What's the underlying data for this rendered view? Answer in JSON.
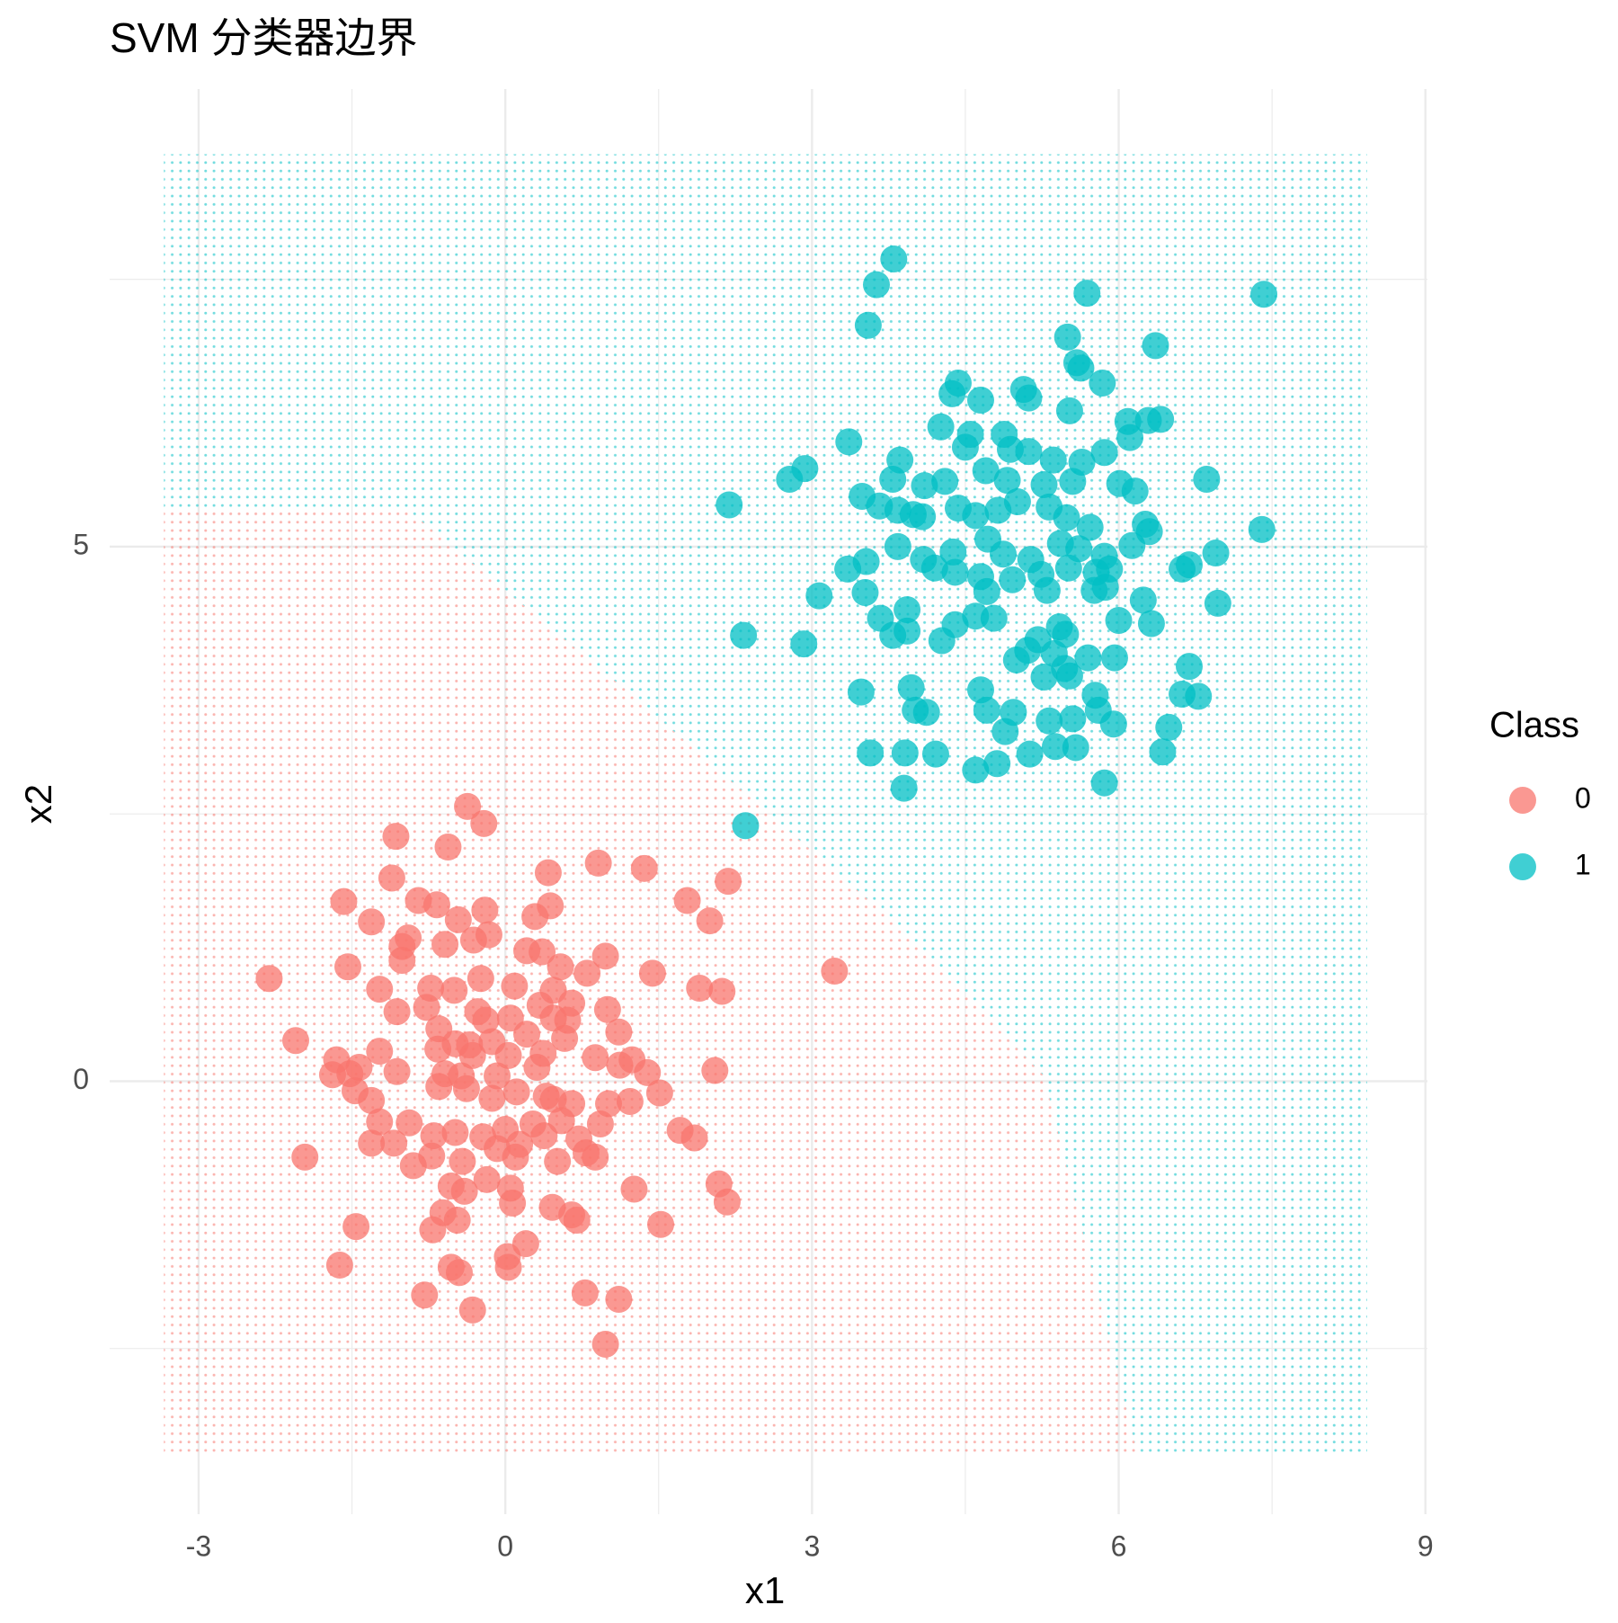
{
  "chart_data": {
    "type": "scatter",
    "title": "SVM 分类器边界",
    "x_label": "x1",
    "y_label": "x2",
    "legend_title": "Class",
    "legend_position": "right",
    "xlim": [
      -3.87,
      9.02
    ],
    "ylim": [
      -4.05,
      9.28
    ],
    "xticks": [
      -3,
      0,
      3,
      6,
      9
    ],
    "yticks": [
      0,
      5
    ],
    "x_minor_grid": [
      -1.5,
      1.5,
      4.5,
      7.5
    ],
    "y_minor_grid": [
      -2.5,
      2.5,
      7.5
    ],
    "grid": true,
    "decision_regions": {
      "xlim": [
        -3.34,
        8.43
      ],
      "ylim": [
        -3.47,
        8.67
      ],
      "boundary_x": [
        -3.34,
        -0.96,
        1.18,
        3.84,
        5.27,
        6.18
      ],
      "boundary_y": [
        5.35,
        5.35,
        3.66,
        1.46,
        0.05,
        -3.47
      ]
    },
    "series": [
      {
        "name": "0",
        "color": "#F8766D",
        "x": [
          -0.37,
          -0.21,
          -1.07,
          -0.56,
          0.42,
          0.91,
          1.36,
          -1.11,
          2.18,
          -1.58,
          -0.85,
          -0.67,
          -0.2,
          0.44,
          1.78,
          -1.31,
          -0.46,
          0.29,
          2.0,
          -0.95,
          -1.01,
          -0.59,
          -0.31,
          -0.16,
          0.36,
          0.98,
          -1.01,
          -1.54,
          0.21,
          0.54,
          0.8,
          1.44,
          3.22,
          -2.31,
          -1.23,
          -0.73,
          -0.5,
          -0.24,
          0.09,
          0.47,
          1.9,
          2.12,
          -1.06,
          -0.77,
          -0.27,
          0.34,
          0.65,
          1.0,
          -0.65,
          -0.19,
          0.05,
          0.47,
          0.61,
          -2.05,
          -0.49,
          -0.35,
          -0.13,
          0.21,
          0.58,
          1.11,
          -1.23,
          -0.66,
          -0.32,
          0.03,
          0.37,
          0.88,
          1.24,
          2.05,
          -1.65,
          -1.52,
          -1.43,
          -1.06,
          -0.59,
          -0.43,
          -0.08,
          0.31,
          1.12,
          1.39,
          -1.69,
          -1.47,
          -0.65,
          -0.38,
          0.11,
          0.47,
          1.51,
          -1.31,
          -0.13,
          0.4,
          0.65,
          1.01,
          1.22,
          -1.23,
          -0.94,
          -0.49,
          -0.22,
          0.0,
          0.27,
          0.55,
          0.93,
          1.71,
          1.85,
          -1.31,
          -1.09,
          -0.7,
          -0.08,
          0.14,
          0.38,
          0.72,
          -1.96,
          -0.72,
          -0.42,
          0.1,
          0.51,
          0.79,
          0.88,
          -0.9,
          -0.18,
          -0.53,
          0.05,
          1.26,
          2.09,
          2.17,
          -0.4,
          0.07,
          0.46,
          -0.61,
          -0.47,
          0.65,
          0.7,
          -1.46,
          -0.71,
          1.52,
          0.2,
          0.02,
          -1.62,
          -0.53,
          0.03,
          -0.45,
          -0.79,
          0.78,
          1.11,
          -0.32,
          0.98
        ],
        "y": [
          2.57,
          2.41,
          2.29,
          2.19,
          1.95,
          2.04,
          1.99,
          1.9,
          1.87,
          1.68,
          1.69,
          1.65,
          1.6,
          1.64,
          1.69,
          1.49,
          1.51,
          1.54,
          1.5,
          1.34,
          1.26,
          1.28,
          1.32,
          1.37,
          1.21,
          1.17,
          1.13,
          1.07,
          1.22,
          1.07,
          1.01,
          1.01,
          1.03,
          0.96,
          0.86,
          0.87,
          0.85,
          0.96,
          0.89,
          0.85,
          0.87,
          0.84,
          0.65,
          0.69,
          0.65,
          0.71,
          0.73,
          0.67,
          0.49,
          0.57,
          0.59,
          0.59,
          0.57,
          0.38,
          0.35,
          0.34,
          0.37,
          0.44,
          0.4,
          0.46,
          0.28,
          0.3,
          0.24,
          0.24,
          0.26,
          0.22,
          0.2,
          0.1,
          0.2,
          0.07,
          0.13,
          0.09,
          0.07,
          0.05,
          0.05,
          0.13,
          0.15,
          0.08,
          0.06,
          -0.09,
          -0.05,
          -0.07,
          -0.1,
          -0.17,
          -0.11,
          -0.18,
          -0.16,
          -0.14,
          -0.21,
          -0.21,
          -0.19,
          -0.38,
          -0.39,
          -0.48,
          -0.52,
          -0.45,
          -0.4,
          -0.37,
          -0.4,
          -0.46,
          -0.53,
          -0.58,
          -0.58,
          -0.51,
          -0.63,
          -0.59,
          -0.51,
          -0.54,
          -0.71,
          -0.7,
          -0.75,
          -0.71,
          -0.75,
          -0.67,
          -0.71,
          -0.79,
          -0.92,
          -0.98,
          -1.0,
          -1.01,
          -0.96,
          -1.13,
          -1.03,
          -1.14,
          -1.18,
          -1.23,
          -1.3,
          -1.25,
          -1.3,
          -1.36,
          -1.39,
          -1.34,
          -1.52,
          -1.64,
          -1.72,
          -1.74,
          -1.74,
          -1.79,
          -2.0,
          -1.98,
          -2.04,
          -2.14,
          -2.46
        ]
      },
      {
        "name": "1",
        "color": "#00BFC4",
        "x": [
          3.8,
          3.63,
          5.69,
          7.42,
          3.55,
          5.5,
          6.36,
          5.59,
          5.63,
          5.84,
          4.43,
          4.37,
          5.07,
          5.12,
          4.65,
          5.52,
          6.09,
          6.29,
          6.41,
          4.26,
          4.55,
          4.88,
          3.36,
          6.11,
          4.5,
          4.94,
          5.12,
          5.36,
          5.86,
          5.64,
          3.86,
          2.93,
          2.78,
          3.79,
          4.1,
          4.3,
          4.7,
          4.91,
          5.27,
          5.55,
          6.01,
          6.16,
          6.86,
          2.19,
          3.49,
          3.66,
          3.84,
          3.99,
          4.08,
          4.43,
          4.6,
          4.82,
          5.01,
          5.32,
          5.49,
          5.72,
          6.26,
          7.4,
          3.84,
          4.09,
          4.38,
          4.72,
          4.87,
          5.14,
          5.43,
          5.61,
          5.86,
          6.13,
          6.3,
          6.95,
          3.35,
          3.53,
          4.2,
          4.4,
          4.65,
          4.96,
          5.24,
          5.51,
          5.78,
          5.91,
          6.62,
          6.69,
          3.07,
          3.52,
          4.71,
          5.3,
          5.76,
          5.87,
          6.24,
          6.97,
          3.67,
          3.93,
          3.79,
          3.93,
          4.4,
          4.6,
          4.78,
          5.42,
          5.48,
          6.0,
          6.32,
          2.33,
          2.92,
          4.27,
          5.21,
          5.11,
          5.37,
          5.0,
          5.47,
          5.7,
          5.96,
          6.69,
          3.48,
          3.97,
          4.65,
          5.27,
          5.52,
          5.77,
          6.62,
          6.78,
          4.01,
          4.12,
          4.71,
          4.97,
          5.32,
          5.55,
          5.8,
          5.95,
          6.49,
          4.89,
          3.57,
          3.91,
          4.21,
          5.13,
          5.38,
          5.58,
          6.43,
          4.6,
          4.81,
          3.9,
          5.86,
          2.35
        ],
        "y": [
          7.69,
          7.45,
          7.37,
          7.36,
          7.07,
          6.96,
          6.88,
          6.72,
          6.67,
          6.53,
          6.53,
          6.43,
          6.47,
          6.39,
          6.37,
          6.27,
          6.17,
          6.18,
          6.19,
          6.12,
          6.05,
          6.05,
          5.98,
          6.02,
          5.93,
          5.91,
          5.89,
          5.81,
          5.88,
          5.79,
          5.81,
          5.73,
          5.63,
          5.63,
          5.57,
          5.61,
          5.71,
          5.62,
          5.58,
          5.61,
          5.59,
          5.52,
          5.63,
          5.39,
          5.47,
          5.38,
          5.34,
          5.3,
          5.28,
          5.36,
          5.29,
          5.34,
          5.42,
          5.37,
          5.27,
          5.18,
          5.21,
          5.16,
          5.0,
          4.88,
          4.95,
          5.07,
          4.93,
          4.88,
          5.03,
          4.98,
          4.91,
          5.01,
          5.14,
          4.94,
          4.79,
          4.86,
          4.8,
          4.76,
          4.72,
          4.69,
          4.74,
          4.8,
          4.76,
          4.79,
          4.79,
          4.83,
          4.54,
          4.57,
          4.58,
          4.59,
          4.59,
          4.62,
          4.5,
          4.47,
          4.33,
          4.41,
          4.17,
          4.21,
          4.27,
          4.35,
          4.33,
          4.25,
          4.18,
          4.31,
          4.28,
          4.17,
          4.09,
          4.12,
          4.13,
          4.03,
          4.0,
          3.94,
          3.86,
          3.96,
          3.96,
          3.88,
          3.64,
          3.68,
          3.66,
          3.78,
          3.79,
          3.61,
          3.62,
          3.6,
          3.47,
          3.45,
          3.47,
          3.45,
          3.37,
          3.39,
          3.47,
          3.34,
          3.31,
          3.27,
          3.07,
          3.07,
          3.06,
          3.06,
          3.13,
          3.12,
          3.08,
          2.91,
          2.97,
          2.74,
          2.79,
          2.39
        ]
      }
    ]
  }
}
